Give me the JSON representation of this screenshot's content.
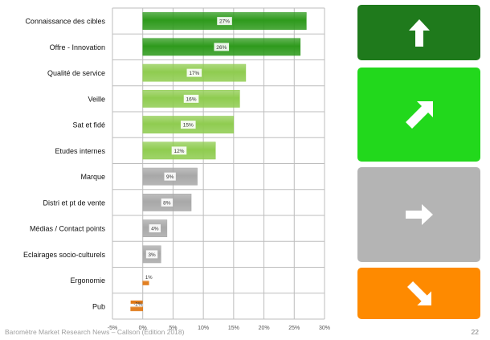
{
  "chart_data": {
    "type": "bar",
    "orientation": "horizontal",
    "categories": [
      "Connaissance des cibles",
      "Offre - Innovation",
      "Qualité de service",
      "Veille",
      "Sat et fidé",
      "Etudes internes",
      "Marque",
      "Distri et pt de vente",
      "Médias / Contact points",
      "Eclairages socio-culturels",
      "Ergonomie",
      "Pub"
    ],
    "values": [
      27,
      26,
      17,
      16,
      15,
      12,
      9,
      8,
      4,
      3,
      1,
      -2
    ],
    "value_labels": [
      "27%",
      "26%",
      "17%",
      "16%",
      "15%",
      "12%",
      "9%",
      "8%",
      "4%",
      "3%",
      "1%",
      "-2%"
    ],
    "bar_colors": [
      "#2e9a1c",
      "#2e9a1c",
      "#8fcc50",
      "#8fcc50",
      "#8fcc50",
      "#8fcc50",
      "#a8a8a8",
      "#a8a8a8",
      "#a8a8a8",
      "#a8a8a8",
      "#e07a18",
      "#e07a18"
    ],
    "xlim": [
      -5,
      30
    ],
    "x_ticks": [
      -5,
      0,
      5,
      10,
      15,
      20,
      25,
      30
    ],
    "x_tick_labels": [
      "-5%",
      "0%",
      "5%",
      "10%",
      "15%",
      "20%",
      "25%",
      "30%"
    ],
    "grid": true
  },
  "trend_panel": [
    {
      "direction": "up",
      "color": "#1f7a1c"
    },
    {
      "direction": "up-right",
      "color": "#22d81c"
    },
    {
      "direction": "right",
      "color": "#b4b4b4"
    },
    {
      "direction": "down-right",
      "color": "#fe8a00"
    }
  ],
  "footer": {
    "source": "Baromètre Market Research News – Callson (Edition 2018)",
    "page": "22"
  }
}
